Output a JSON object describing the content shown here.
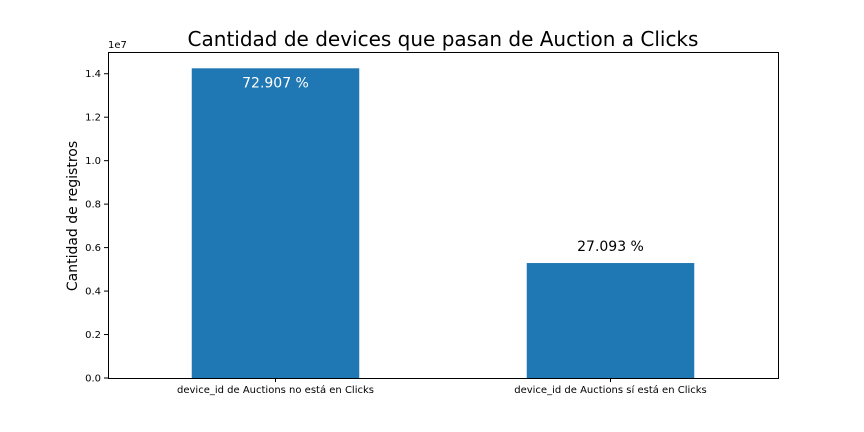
{
  "chart_data": {
    "type": "bar",
    "title": "Cantidad de devices que pasan de Auction a Clicks",
    "ylabel": "Cantidad de registros",
    "y_offset_label": "1e7",
    "categories": [
      "device_id de Auctions no está en Clicks",
      "device_id de Auctions sí está en Clicks"
    ],
    "values": [
      14250000,
      5290000
    ],
    "bar_labels": [
      "72.907 %",
      "27.093 %"
    ],
    "bar_label_positions": [
      "inside",
      "outside"
    ],
    "ylim": [
      0,
      15000000
    ],
    "yticks": [
      0,
      2000000,
      4000000,
      6000000,
      8000000,
      10000000,
      12000000,
      14000000
    ],
    "ytick_labels": [
      "0.0",
      "0.2",
      "0.4",
      "0.6",
      "0.8",
      "1.0",
      "1.2",
      "1.4"
    ],
    "bar_color": "#1f77b4",
    "grid": false,
    "legend": "none"
  }
}
